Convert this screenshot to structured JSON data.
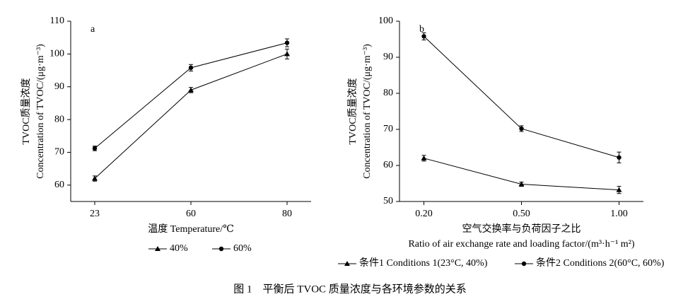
{
  "caption": "图 1　平衡后 TVOC 质量浓度与各环境参数的关系",
  "chart_data": [
    {
      "type": "line",
      "panel": "a",
      "xlabel": [
        "温度 Temperature/℃"
      ],
      "ylabel": [
        "TVOC质量浓度",
        "Concentration of TVOC/(μg·m⁻³)"
      ],
      "categories": [
        "23",
        "60",
        "80"
      ],
      "ylim": [
        55,
        110
      ],
      "yticks": [
        60,
        70,
        80,
        90,
        100,
        110
      ],
      "series": [
        {
          "name": "40%",
          "color": "#000000",
          "marker": "triangle",
          "values": [
            62,
            89,
            100
          ],
          "errors": [
            0.8,
            0.8,
            1.5
          ]
        },
        {
          "name": "60%",
          "color": "#000000",
          "marker": "circle",
          "values": [
            71.2,
            95.8,
            103.4
          ],
          "errors": [
            0.7,
            1.0,
            1.2
          ]
        }
      ]
    },
    {
      "type": "line",
      "panel": "b",
      "xlabel": [
        "空气交换率与负荷因子之比",
        "Ratio of air exchange rate and loading factor/(m³·h⁻¹ m²)"
      ],
      "ylabel": [
        "TVOC质量浓度",
        "Concentration of TVOC/(μg·m⁻³)"
      ],
      "categories": [
        "0.20",
        "0.50",
        "1.00"
      ],
      "ylim": [
        50,
        100
      ],
      "yticks": [
        50,
        60,
        70,
        80,
        90,
        100
      ],
      "series": [
        {
          "name": "条件1 Conditions 1(23°C, 40%)",
          "color": "#000000",
          "marker": "triangle",
          "values": [
            62,
            54.8,
            53.2
          ],
          "errors": [
            0.8,
            0.6,
            1.0
          ]
        },
        {
          "name": "条件2 Conditions 2(60°C, 60%)",
          "color": "#000000",
          "marker": "circle",
          "values": [
            95.8,
            70.2,
            62.2
          ],
          "errors": [
            1.0,
            0.8,
            1.5
          ]
        }
      ]
    }
  ]
}
